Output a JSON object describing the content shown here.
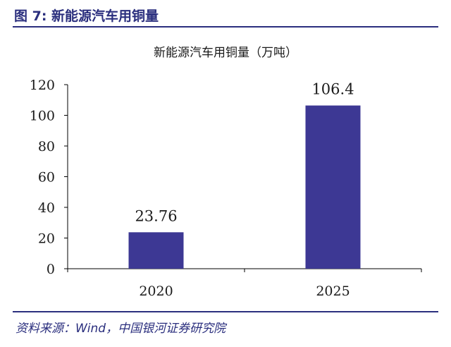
{
  "figure": {
    "title": "图 7:  新能源汽车用铜量",
    "source": "资料来源：Wind，中国银河证券研究院"
  },
  "colors": {
    "bar": "#3d3894",
    "accent": "#2b2f7e"
  },
  "chart_data": {
    "type": "bar",
    "title": "新能源汽车用铜量（万吨）",
    "categories": [
      "2020",
      "2025"
    ],
    "values": [
      23.76,
      106.4
    ],
    "data_labels": [
      "23.76",
      "106.4"
    ],
    "ylim": [
      0,
      120
    ],
    "yticks": [
      0,
      20,
      40,
      60,
      80,
      100,
      120
    ],
    "xlabel": "",
    "ylabel": "",
    "grid": false,
    "legend": "none"
  }
}
